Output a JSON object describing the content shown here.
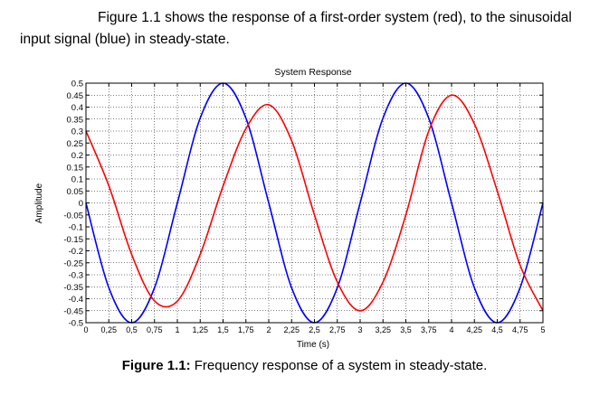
{
  "text": {
    "para_line1": "Figure 1.1 shows the response of a first-order system (red), to the sinusoidal",
    "para_line2": "input signal (blue) in steady-state.",
    "caption_label": "Figure 1.1:",
    "caption_text": " Frequency response of a system in steady-state."
  },
  "chart_data": {
    "type": "line",
    "title": "System Response",
    "xlabel": "Time (s)",
    "ylabel": "Amplitude",
    "xlim": [
      0,
      5
    ],
    "ylim": [
      -0.5,
      0.5
    ],
    "grid": true,
    "x_ticks": [
      "0",
      "0,25",
      "0,5",
      "0,75",
      "1",
      "1,25",
      "1,5",
      "1,75",
      "2",
      "2,25",
      "2,5",
      "2,75",
      "3",
      "3,25",
      "3,5",
      "3,75",
      "4",
      "4,25",
      "4,5",
      "4,75",
      "5"
    ],
    "y_ticks": [
      "0.5",
      "0.45",
      "0.4",
      "0.35",
      "0.3",
      "0.25",
      "0.2",
      "0.15",
      "0.1",
      "0.05",
      "0",
      "-0.05",
      "-0.1",
      "-0.15",
      "-0.2",
      "-0.25",
      "-0.3",
      "-0.35",
      "-0.4",
      "-0.45",
      "-0.5"
    ],
    "series": [
      {
        "color": "#0000ff",
        "x": [
          0,
          0.25,
          0.5,
          0.75,
          1,
          1.25,
          1.5,
          1.75,
          2,
          2.25,
          2.5,
          2.75,
          3,
          3.25,
          3.5,
          3.75,
          4,
          4.25,
          4.5,
          4.75,
          5
        ],
        "y": [
          0,
          -0.354,
          -0.5,
          -0.354,
          0,
          0.354,
          0.5,
          0.354,
          0,
          -0.354,
          -0.5,
          -0.354,
          0,
          0.354,
          0.5,
          0.354,
          0,
          -0.354,
          -0.5,
          -0.354,
          0
        ]
      },
      {
        "color": "#ff0000",
        "x": [
          0,
          0.25,
          0.5,
          0.75,
          1,
          1.25,
          1.5,
          1.75,
          2,
          2.25,
          2.5,
          2.75,
          3,
          3.25,
          3.5,
          3.75,
          4,
          4.25,
          4.5,
          4.75,
          5
        ],
        "y": [
          0.3,
          0.072,
          -0.215,
          -0.409,
          -0.41,
          -0.215,
          0.07,
          0.31,
          0.41,
          0.26,
          -0.05,
          -0.33,
          -0.45,
          -0.33,
          -0.05,
          0.3,
          0.45,
          0.33,
          0.05,
          -0.26,
          -0.45
        ]
      }
    ]
  }
}
